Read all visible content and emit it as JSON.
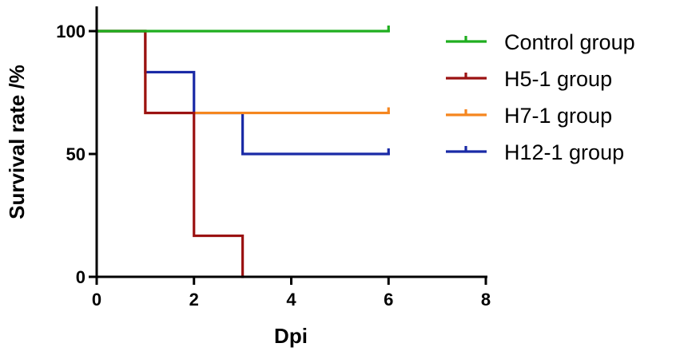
{
  "chart_data": {
    "type": "line",
    "step": true,
    "xlabel": "Dpi",
    "ylabel": "Survival rate /%",
    "xlim": [
      0,
      8
    ],
    "ylim": [
      0,
      100
    ],
    "xticks": [
      0,
      2,
      4,
      6,
      8
    ],
    "yticks": [
      0,
      50,
      100
    ],
    "grid": false,
    "legend_position": "right",
    "series": [
      {
        "name": "Control group",
        "color": "#1fae1f",
        "x": [
          0,
          6
        ],
        "y": [
          100,
          100
        ],
        "censor_x": [
          6
        ],
        "censor_y": [
          100
        ]
      },
      {
        "name": "H5-1  group",
        "color": "#9b1212",
        "x": [
          0,
          1,
          2,
          3
        ],
        "y": [
          100,
          66.7,
          16.7,
          0
        ],
        "censor_x": [],
        "censor_y": []
      },
      {
        "name": "H7-1 group",
        "color": "#f5861f",
        "x": [
          0,
          1,
          6
        ],
        "y": [
          100,
          66.7,
          66.7
        ],
        "censor_x": [
          6
        ],
        "censor_y": [
          66.7
        ]
      },
      {
        "name": "H12-1 group",
        "color": "#1a2aa6",
        "x": [
          0,
          1,
          2,
          3,
          6
        ],
        "y": [
          100,
          83.3,
          66.7,
          50,
          50
        ],
        "censor_x": [
          6
        ],
        "censor_y": [
          50
        ]
      }
    ]
  }
}
